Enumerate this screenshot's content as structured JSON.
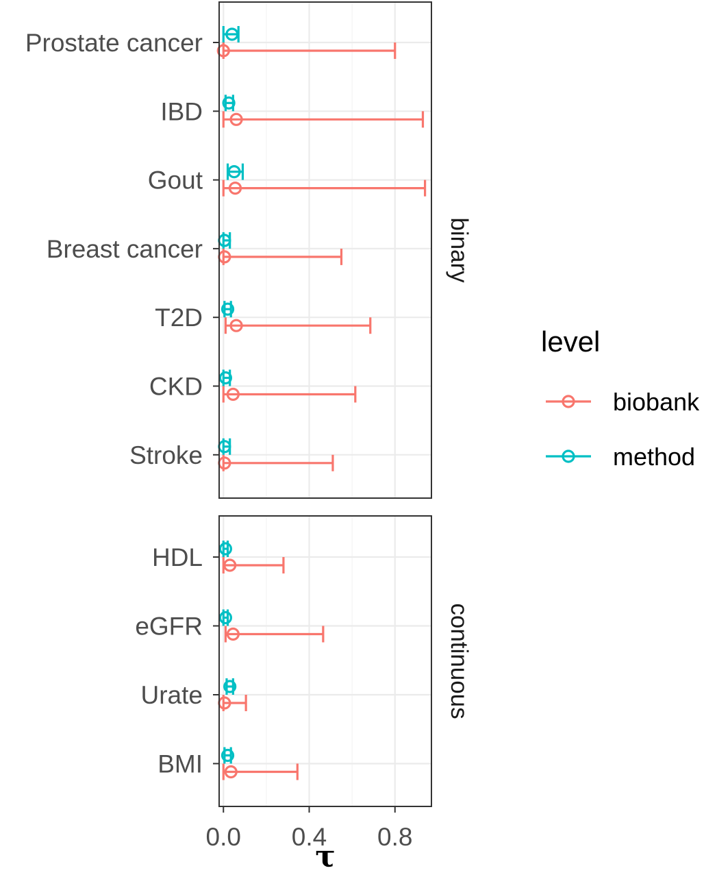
{
  "chart_data": {
    "type": "errorbar",
    "xlabel": "τ",
    "xlim": [
      -0.02,
      0.97
    ],
    "x_ticks": [
      0.0,
      0.4,
      0.8
    ],
    "x_tick_labels": [
      "0.0",
      "0.4",
      "0.8"
    ],
    "grid": true,
    "legend": {
      "title": "level",
      "position": "right",
      "entries": [
        {
          "name": "biobank",
          "color": "#F8766D"
        },
        {
          "name": "method",
          "color": "#00BFC4"
        }
      ]
    },
    "panels": [
      {
        "name": "binary",
        "categories": [
          "Prostate cancer",
          "IBD",
          "Gout",
          "Breast cancer",
          "T2D",
          "CKD",
          "Stroke"
        ],
        "series": [
          {
            "name": "biobank",
            "points": [
              {
                "category": "Prostate cancer",
                "estimate": 0.0,
                "lower": 0.0,
                "upper": 0.8
              },
              {
                "category": "IBD",
                "estimate": 0.06,
                "lower": 0.0,
                "upper": 0.93
              },
              {
                "category": "Gout",
                "estimate": 0.055,
                "lower": 0.0,
                "upper": 0.94
              },
              {
                "category": "Breast cancer",
                "estimate": 0.005,
                "lower": 0.0,
                "upper": 0.55
              },
              {
                "category": "T2D",
                "estimate": 0.06,
                "lower": 0.01,
                "upper": 0.685
              },
              {
                "category": "CKD",
                "estimate": 0.045,
                "lower": 0.0,
                "upper": 0.615
              },
              {
                "category": "Stroke",
                "estimate": 0.005,
                "lower": 0.0,
                "upper": 0.51
              }
            ]
          },
          {
            "name": "method",
            "points": [
              {
                "category": "Prostate cancer",
                "estimate": 0.04,
                "lower": 0.0,
                "upper": 0.07
              },
              {
                "category": "IBD",
                "estimate": 0.025,
                "lower": 0.01,
                "upper": 0.045
              },
              {
                "category": "Gout",
                "estimate": 0.05,
                "lower": 0.02,
                "upper": 0.09
              },
              {
                "category": "Breast cancer",
                "estimate": 0.005,
                "lower": 0.0,
                "upper": 0.03
              },
              {
                "category": "T2D",
                "estimate": 0.02,
                "lower": 0.005,
                "upper": 0.035
              },
              {
                "category": "CKD",
                "estimate": 0.01,
                "lower": 0.0,
                "upper": 0.03
              },
              {
                "category": "Stroke",
                "estimate": 0.005,
                "lower": 0.0,
                "upper": 0.03
              }
            ]
          }
        ]
      },
      {
        "name": "continuous",
        "categories": [
          "HDL",
          "eGFR",
          "Urate",
          "BMI"
        ],
        "series": [
          {
            "name": "biobank",
            "points": [
              {
                "category": "HDL",
                "estimate": 0.03,
                "lower": 0.0,
                "upper": 0.28
              },
              {
                "category": "eGFR",
                "estimate": 0.045,
                "lower": 0.01,
                "upper": 0.465
              },
              {
                "category": "Urate",
                "estimate": 0.005,
                "lower": 0.0,
                "upper": 0.105
              },
              {
                "category": "BMI",
                "estimate": 0.035,
                "lower": 0.0,
                "upper": 0.345
              }
            ]
          },
          {
            "name": "method",
            "points": [
              {
                "category": "HDL",
                "estimate": 0.01,
                "lower": 0.0,
                "upper": 0.02
              },
              {
                "category": "eGFR",
                "estimate": 0.01,
                "lower": 0.0,
                "upper": 0.02
              },
              {
                "category": "Urate",
                "estimate": 0.03,
                "lower": 0.015,
                "upper": 0.045
              },
              {
                "category": "BMI",
                "estimate": 0.02,
                "lower": 0.005,
                "upper": 0.035
              }
            ]
          }
        ]
      }
    ]
  }
}
